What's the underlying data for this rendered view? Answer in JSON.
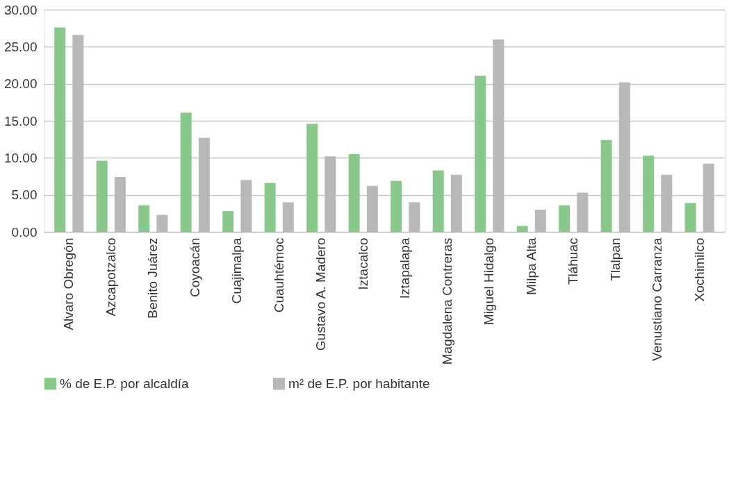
{
  "chart_data": {
    "type": "bar",
    "categories": [
      "Alvaro Obregón",
      "Azcapotzalco",
      "Benito Juárez",
      "Coyoacán",
      "Cuajimalpa",
      "Cuauhtémoc",
      "Gustavo A. Madero",
      "Iztacalco",
      "Iztapalapa",
      "Magdalena Contreras",
      "Miguel Hidalgo",
      "Milpa Alta",
      "Tláhuac",
      "Tlalpan",
      "Venustiano Carranza",
      "Xochimilco"
    ],
    "series": [
      {
        "name": "% de E.P. por alcaldía",
        "color": "#88c98b",
        "values": [
          27.6,
          9.6,
          3.6,
          16.1,
          2.8,
          6.6,
          14.6,
          10.5,
          6.9,
          8.3,
          21.1,
          0.8,
          3.6,
          12.4,
          10.3,
          3.9
        ]
      },
      {
        "name": "m² de E.P. por habitante",
        "color": "#b8b8b8",
        "values": [
          26.6,
          7.4,
          2.3,
          12.7,
          7.0,
          4.0,
          10.2,
          6.2,
          4.0,
          7.7,
          26.0,
          3.0,
          5.3,
          20.2,
          7.7,
          9.2
        ]
      }
    ],
    "ylim": [
      0,
      30
    ],
    "yticks": [
      {
        "value": 0,
        "label": "0.00"
      },
      {
        "value": 5,
        "label": "5.00"
      },
      {
        "value": 10,
        "label": "10.00"
      },
      {
        "value": 15,
        "label": "15.00"
      },
      {
        "value": 20,
        "label": "20.00"
      },
      {
        "value": 25,
        "label": "25.00"
      },
      {
        "value": 30,
        "label": "30.00"
      }
    ],
    "grid": "y",
    "legend": "bottom"
  }
}
